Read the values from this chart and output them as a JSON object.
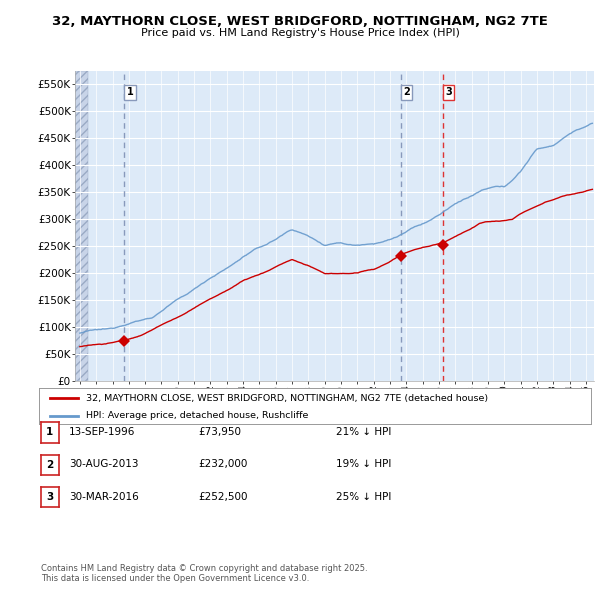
{
  "title_line1": "32, MAYTHORN CLOSE, WEST BRIDGFORD, NOTTINGHAM, NG2 7TE",
  "title_line2": "Price paid vs. HM Land Registry's House Price Index (HPI)",
  "bg_color": "#ddeaf8",
  "grid_color": "#ffffff",
  "red_line_color": "#cc0000",
  "blue_line_color": "#6699cc",
  "sale_marker_color": "#cc0000",
  "vline_colors": [
    "#8899bb",
    "#8899bb",
    "#dd3333"
  ],
  "vline_styles": [
    "--",
    "--",
    "--"
  ],
  "ylabel_ticks": [
    "£0",
    "£50K",
    "£100K",
    "£150K",
    "£200K",
    "£250K",
    "£300K",
    "£350K",
    "£400K",
    "£450K",
    "£500K",
    "£550K"
  ],
  "ylabel_values": [
    0,
    50000,
    100000,
    150000,
    200000,
    250000,
    300000,
    350000,
    400000,
    450000,
    500000,
    550000
  ],
  "xmin": 1993.7,
  "xmax": 2025.5,
  "ymin": 0,
  "ymax": 575000,
  "hatch_end": 1994.5,
  "sales": [
    {
      "label": "1",
      "date_num": 1996.71,
      "price": 73950,
      "note": "13-SEP-1996",
      "pct": "21%"
    },
    {
      "label": "2",
      "date_num": 2013.66,
      "price": 232000,
      "note": "30-AUG-2013",
      "pct": "19%"
    },
    {
      "label": "3",
      "date_num": 2016.24,
      "price": 252500,
      "note": "30-MAR-2016",
      "pct": "25%"
    }
  ],
  "legend_line1": "32, MAYTHORN CLOSE, WEST BRIDGFORD, NOTTINGHAM, NG2 7TE (detached house)",
  "legend_line2": "HPI: Average price, detached house, Rushcliffe",
  "footnote": "Contains HM Land Registry data © Crown copyright and database right 2025.\nThis data is licensed under the Open Government Licence v3.0.",
  "table_rows": [
    [
      "1",
      "13-SEP-1996",
      "£73,950",
      "21% ↓ HPI"
    ],
    [
      "2",
      "30-AUG-2013",
      "£232,000",
      "19% ↓ HPI"
    ],
    [
      "3",
      "30-MAR-2016",
      "£252,500",
      "25% ↓ HPI"
    ]
  ]
}
